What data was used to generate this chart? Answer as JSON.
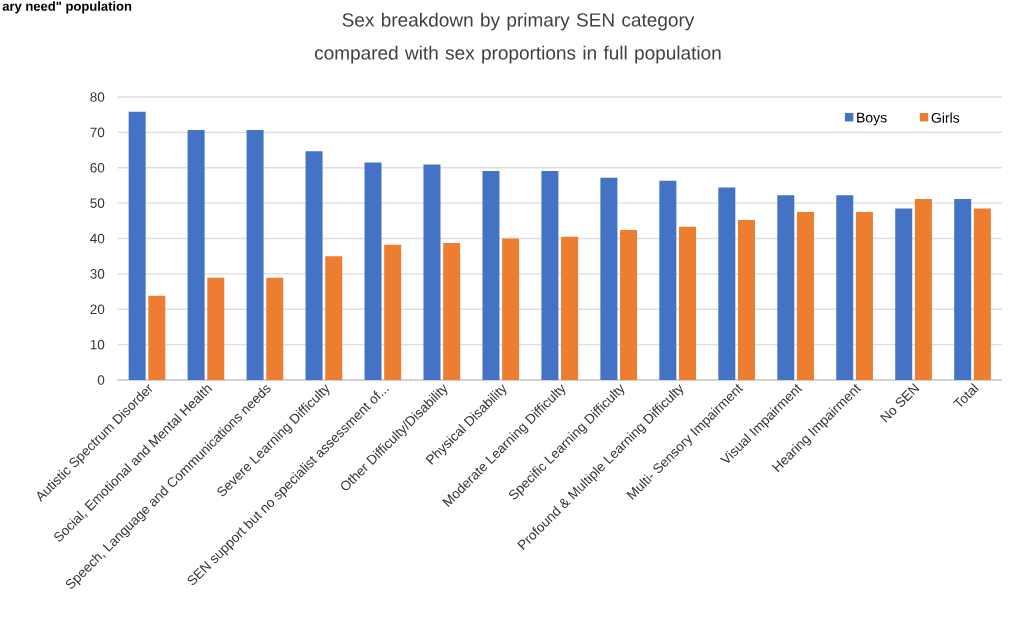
{
  "chart_data": {
    "type": "bar",
    "title": "Sex breakdown by primary SEN category compared with sex proportions in full population",
    "annotations": [
      "ary need\" population"
    ],
    "categories": [
      "Autistic Spectrum Disorder",
      "Social, Emotional and Mental Health",
      "Speech, Language and Communications needs",
      "Severe Learning Difficulty",
      "SEN support but no specialist assessment of...",
      "Other Difficulty/Disability",
      "Physical Disability",
      "Moderate Learning Difficulty",
      "Specific Learning Difficulty",
      "Profound & Multiple Learning Difficulty",
      "Multi- Sensory Impairment",
      "Visual Impairment",
      "Hearing Impairment",
      "No SEN",
      "Total"
    ],
    "series": [
      {
        "name": "Boys",
        "color": "#4472c4",
        "values": [
          75.8,
          70.7,
          70.7,
          64.7,
          61.5,
          60.9,
          59.1,
          59.1,
          57.2,
          56.3,
          54.4,
          52.2,
          52.2,
          48.5,
          51.2
        ]
      },
      {
        "name": "Girls",
        "color": "#ed7d31",
        "values": [
          23.8,
          28.9,
          28.9,
          35.0,
          38.2,
          38.7,
          40.0,
          40.5,
          42.4,
          43.3,
          45.2,
          47.5,
          47.5,
          51.2,
          48.5
        ]
      }
    ],
    "ylim": [
      0,
      80
    ],
    "yticks": [
      0,
      10,
      20,
      30,
      40,
      50,
      60,
      70,
      80
    ],
    "grid": "y",
    "legend": "top right"
  }
}
